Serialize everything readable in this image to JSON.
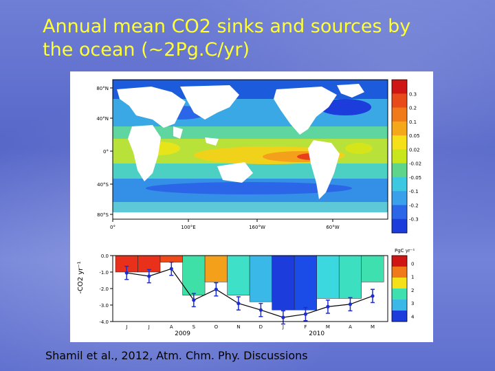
{
  "slide": {
    "title_line1": "Annual mean CO2 sinks and sources by",
    "title_line2": "the ocean (~2Pg.C/yr)",
    "citation": "Shamil et al., 2012, Atm. Chm. Phy. Discussions",
    "title_color": "#ffff33"
  },
  "chart_data": [
    {
      "type": "heatmap",
      "title": "",
      "y_ticks": [
        "80°N",
        "40°N",
        "0°",
        "40°S",
        "80°S"
      ],
      "x_ticks": [
        "0°",
        "100°E",
        "160°W",
        "60°W"
      ],
      "colorbar": {
        "labels": [
          "0.3",
          "0.2",
          "0.1",
          "0.05",
          "0.02",
          "-0.02",
          "-0.05",
          "-0.1",
          "-0.2",
          "-0.3"
        ],
        "colors": [
          "#d01515",
          "#e84a1a",
          "#f07a1a",
          "#f5a81a",
          "#f5e01a",
          "#c8e61a",
          "#5ed58a",
          "#3cc8e0",
          "#3aa0ec",
          "#2c66e8",
          "#1c3cdc"
        ]
      }
    },
    {
      "type": "bar",
      "ylabel": "-CO2 yr⁻¹",
      "ylim": [
        -4.0,
        0.0
      ],
      "y_ticks": [
        "0.0",
        "-1.0",
        "-2.0",
        "-3.0",
        "-4.0"
      ],
      "categories": [
        "J",
        "J",
        "A",
        "S",
        "O",
        "N",
        "D",
        "J",
        "F",
        "M",
        "A",
        "M"
      ],
      "year_labels": [
        "2009",
        "2010"
      ],
      "values": [
        -1.0,
        -1.0,
        -0.4,
        -2.4,
        -1.6,
        -2.4,
        -2.8,
        -3.3,
        -3.3,
        -2.6,
        -2.6,
        -1.6
      ],
      "bar_colors": [
        "#e8301a",
        "#e8301a",
        "#f04a1a",
        "#3ee0a8",
        "#f5a01a",
        "#3ee0c8",
        "#3ab8e8",
        "#1c3cdc",
        "#1c4ce8",
        "#3cd8e0",
        "#3ce0c0",
        "#3ee0b0"
      ],
      "line_points": [
        -1.05,
        -1.25,
        -0.8,
        -2.7,
        -2.05,
        -2.9,
        -3.3,
        -3.75,
        -3.55,
        -3.1,
        -2.95,
        -2.45
      ],
      "errors": [
        0.4,
        0.4,
        0.4,
        0.4,
        0.4,
        0.4,
        0.4,
        0.4,
        0.4,
        0.4,
        0.4,
        0.4
      ],
      "colorbar": {
        "title": "PgC yr⁻¹",
        "labels": [
          "0",
          "1",
          "2",
          "3",
          "4"
        ],
        "colors": [
          "#d01515",
          "#f07a1a",
          "#f5e01a",
          "#3ee0b0",
          "#3ab8e8",
          "#1c3cdc"
        ]
      }
    }
  ]
}
